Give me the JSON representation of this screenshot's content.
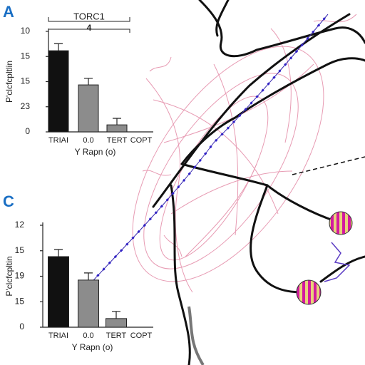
{
  "chart_data": [
    {
      "type": "bar",
      "panel": "A",
      "annotation": "TORC1",
      "annotation_value": "4",
      "categories": [
        "TRIAI",
        "0.0",
        "TERT",
        "COPT"
      ],
      "values": [
        3.23,
        1.87,
        0.28,
        null
      ],
      "errors": [
        0.28,
        0.26,
        0.26,
        null
      ],
      "colors": [
        "#111111",
        "#8c8c8c",
        "#8c8c8c",
        "#8c8c8c"
      ],
      "ylabel": "P'clcfcpltlin",
      "xlabel": "Y Rapn (o)",
      "ylim": [
        0,
        4
      ],
      "yticks": [
        0,
        {
          "value": 1,
          "label": "23"
        },
        {
          "value": 2,
          "label": "15"
        },
        {
          "value": 3,
          "label": "15"
        },
        {
          "value": 4,
          "label": "10"
        }
      ]
    },
    {
      "type": "bar",
      "panel": "C",
      "categories": [
        "TRIAI",
        "0.0",
        "TERT",
        "COPT"
      ],
      "values": [
        2.77,
        1.85,
        0.34,
        null
      ],
      "errors": [
        0.28,
        0.28,
        0.28,
        null
      ],
      "colors": [
        "#111111",
        "#8c8c8c",
        "#8c8c8c",
        "#8c8c8c"
      ],
      "ylabel": "P'clcfcpltin",
      "xlabel": "Y Rapn (o)",
      "ylim": [
        0,
        4
      ],
      "yticks": [
        0,
        {
          "value": 1,
          "label": "15"
        },
        {
          "value": 2,
          "label": "19"
        },
        {
          "value": 3,
          "label": "15"
        },
        {
          "value": 4,
          "label": "12"
        }
      ]
    }
  ]
}
